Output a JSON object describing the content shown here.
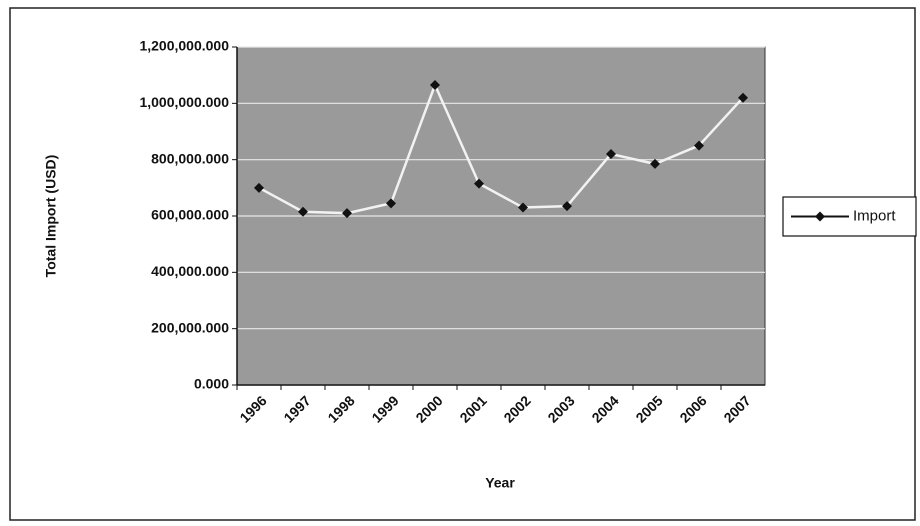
{
  "chart_data": {
    "type": "line",
    "x_label": "Year",
    "y_label": "Total Import (USD)",
    "categories": [
      "1996",
      "1997",
      "1998",
      "1999",
      "2000",
      "2001",
      "2002",
      "2003",
      "2004",
      "2005",
      "2006",
      "2007"
    ],
    "series": [
      {
        "name": "Import",
        "line_color": "#f2f2f2",
        "marker_color": "#111111",
        "values": [
          700000,
          615000,
          610000,
          645000,
          1065000,
          715000,
          630000,
          635000,
          820000,
          785000,
          850000,
          1020000
        ]
      }
    ],
    "ylim": [
      0,
      1200000
    ],
    "yticks": [
      {
        "value": 0,
        "label": "0.000"
      },
      {
        "value": 200000,
        "label": "200,000.000"
      },
      {
        "value": 400000,
        "label": "400,000.000"
      },
      {
        "value": 600000,
        "label": "600,000.000"
      },
      {
        "value": 800000,
        "label": "800,000.000"
      },
      {
        "value": 1000000,
        "label": "1,000,000.000"
      },
      {
        "value": 1200000,
        "label": "1,200,000.000"
      }
    ],
    "grid": true,
    "plot_background": "#9a9a9a",
    "legend": "right"
  }
}
